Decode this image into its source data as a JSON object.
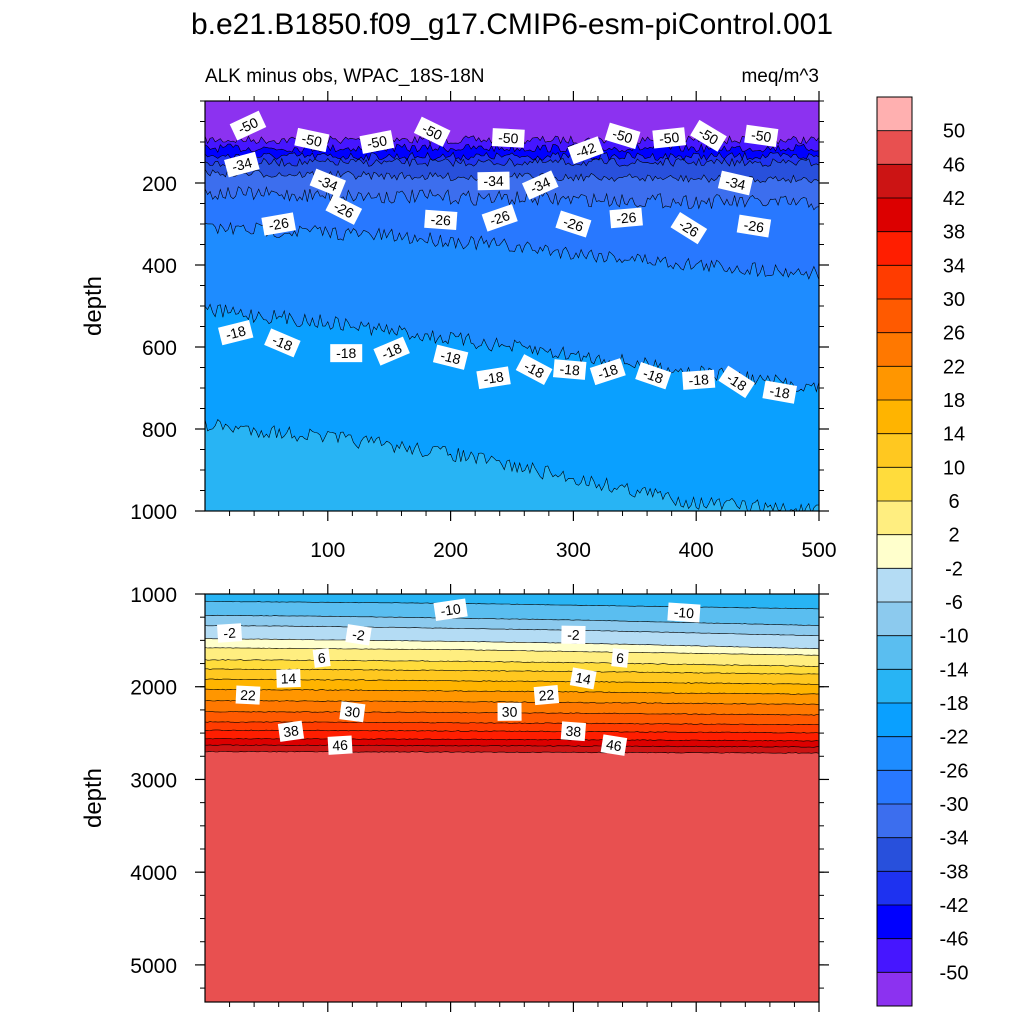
{
  "figure": {
    "title": "b.e21.B1850.f09_g17.CMIP6-esm-piControl.001",
    "left_string": "ALK minus obs, WPAC_18S-18N",
    "right_string": "meq/m^3"
  },
  "chart_data": [
    {
      "type": "heatmap",
      "panel": "upper",
      "title": "ALK minus obs, WPAC_18S-18N",
      "units": "meq/m^3",
      "xlabel": "",
      "ylabel": "depth",
      "xlim": [
        0,
        500
      ],
      "ylim": [
        0,
        1000
      ],
      "y_reversed": true,
      "x_ticks": [
        100,
        200,
        300,
        400,
        500
      ],
      "y_ticks": [
        200,
        400,
        600,
        800,
        1000
      ],
      "contour_interval": 4,
      "contour_boundaries_depth": {
        "x": [
          0,
          100,
          200,
          300,
          400,
          500
        ],
        "levels": [
          {
            "level": -50,
            "depth": [
              95,
              95,
              95,
              95,
              95,
              95
            ]
          },
          {
            "level": -46,
            "depth": [
              115,
              115,
              115,
              115,
              115,
              115
            ]
          },
          {
            "level": -42,
            "depth": [
              135,
              135,
              135,
              135,
              135,
              135
            ]
          },
          {
            "level": -38,
            "depth": [
              150,
              150,
              150,
              150,
              150,
              150
            ]
          },
          {
            "level": -34,
            "depth": [
              175,
              180,
              185,
              185,
              190,
              190
            ]
          },
          {
            "level": -30,
            "depth": [
              225,
              230,
              235,
              240,
              245,
              250
            ]
          },
          {
            "level": -26,
            "depth": [
              310,
              320,
              340,
              370,
              400,
              420
            ]
          },
          {
            "level": -22,
            "depth": [
              510,
              540,
              580,
              620,
              660,
              700
            ]
          },
          {
            "level": -18,
            "depth": [
              790,
              820,
              860,
              920,
              980,
              1000
            ]
          }
        ]
      },
      "contour_labels": [
        {
          "text": "-50",
          "x": 35,
          "depth": 60
        },
        {
          "text": "-50",
          "x": 87,
          "depth": 95
        },
        {
          "text": "-50",
          "x": 140,
          "depth": 100
        },
        {
          "text": "-50",
          "x": 185,
          "depth": 75
        },
        {
          "text": "-50",
          "x": 247,
          "depth": 90
        },
        {
          "text": "-42",
          "x": 310,
          "depth": 120
        },
        {
          "text": "-50",
          "x": 340,
          "depth": 85
        },
        {
          "text": "-50",
          "x": 378,
          "depth": 90
        },
        {
          "text": "-50",
          "x": 410,
          "depth": 85
        },
        {
          "text": "-50",
          "x": 453,
          "depth": 85
        },
        {
          "text": "-34",
          "x": 30,
          "depth": 155
        },
        {
          "text": "-34",
          "x": 100,
          "depth": 200
        },
        {
          "text": "-34",
          "x": 235,
          "depth": 195
        },
        {
          "text": "-34",
          "x": 273,
          "depth": 205
        },
        {
          "text": "-34",
          "x": 432,
          "depth": 200
        },
        {
          "text": "-26",
          "x": 60,
          "depth": 300
        },
        {
          "text": "-26",
          "x": 113,
          "depth": 265
        },
        {
          "text": "-26",
          "x": 192,
          "depth": 290
        },
        {
          "text": "-26",
          "x": 240,
          "depth": 285
        },
        {
          "text": "-26",
          "x": 300,
          "depth": 300
        },
        {
          "text": "-26",
          "x": 343,
          "depth": 285
        },
        {
          "text": "-26",
          "x": 394,
          "depth": 310
        },
        {
          "text": "-26",
          "x": 447,
          "depth": 305
        },
        {
          "text": "-18",
          "x": 25,
          "depth": 565
        },
        {
          "text": "-18",
          "x": 63,
          "depth": 590
        },
        {
          "text": "-18",
          "x": 115,
          "depth": 615
        },
        {
          "text": "-18",
          "x": 152,
          "depth": 610
        },
        {
          "text": "-18",
          "x": 200,
          "depth": 625
        },
        {
          "text": "-18",
          "x": 235,
          "depth": 675
        },
        {
          "text": "-18",
          "x": 268,
          "depth": 655
        },
        {
          "text": "-18",
          "x": 297,
          "depth": 655
        },
        {
          "text": "-18",
          "x": 328,
          "depth": 660
        },
        {
          "text": "-18",
          "x": 365,
          "depth": 670
        },
        {
          "text": "-18",
          "x": 402,
          "depth": 680
        },
        {
          "text": "-18",
          "x": 433,
          "depth": 685
        },
        {
          "text": "-18",
          "x": 468,
          "depth": 710
        }
      ]
    },
    {
      "type": "heatmap",
      "panel": "lower",
      "xlabel": "",
      "ylabel": "depth",
      "xlim": [
        0,
        500
      ],
      "ylim": [
        1000,
        5400
      ],
      "y_reversed": true,
      "y_ticks": [
        1000,
        2000,
        3000,
        4000,
        5000
      ],
      "contour_interval": 4,
      "contour_boundaries_depth": {
        "x": [
          0,
          100,
          200,
          300,
          400,
          500
        ],
        "levels": [
          {
            "level": -14,
            "depth": [
              1080,
              1090,
              1100,
              1120,
              1140,
              1160
            ]
          },
          {
            "level": -10,
            "depth": [
              1230,
              1240,
              1260,
              1280,
              1310,
              1340
            ]
          },
          {
            "level": -6,
            "depth": [
              1340,
              1350,
              1370,
              1390,
              1420,
              1450
            ]
          },
          {
            "level": -2,
            "depth": [
              1480,
              1495,
              1510,
              1530,
              1560,
              1590
            ]
          },
          {
            "level": 2,
            "depth": [
              1580,
              1590,
              1600,
              1620,
              1640,
              1660
            ]
          },
          {
            "level": 6,
            "depth": [
              1710,
              1715,
              1725,
              1740,
              1760,
              1780
            ]
          },
          {
            "level": 10,
            "depth": [
              1810,
              1815,
              1825,
              1835,
              1850,
              1865
            ]
          },
          {
            "level": 14,
            "depth": [
              1920,
              1925,
              1935,
              1945,
              1960,
              1975
            ]
          },
          {
            "level": 18,
            "depth": [
              2030,
              2035,
              2045,
              2055,
              2070,
              2080
            ]
          },
          {
            "level": 22,
            "depth": [
              2150,
              2155,
              2160,
              2170,
              2180,
              2190
            ]
          },
          {
            "level": 26,
            "depth": [
              2270,
              2272,
              2278,
              2285,
              2295,
              2305
            ]
          },
          {
            "level": 30,
            "depth": [
              2380,
              2382,
              2388,
              2395,
              2403,
              2410
            ]
          },
          {
            "level": 34,
            "depth": [
              2470,
              2472,
              2477,
              2483,
              2490,
              2497
            ]
          },
          {
            "level": 38,
            "depth": [
              2560,
              2562,
              2566,
              2572,
              2578,
              2585
            ]
          },
          {
            "level": 42,
            "depth": [
              2630,
              2632,
              2636,
              2640,
              2645,
              2650
            ]
          },
          {
            "level": 46,
            "depth": [
              2700,
              2702,
              2705,
              2708,
              2712,
              2716
            ]
          }
        ]
      },
      "contour_labels": [
        {
          "text": "-10",
          "x": 200,
          "depth": 1170
        },
        {
          "text": "-10",
          "x": 390,
          "depth": 1200
        },
        {
          "text": "-2",
          "x": 20,
          "depth": 1420
        },
        {
          "text": "-2",
          "x": 125,
          "depth": 1440
        },
        {
          "text": "-2",
          "x": 300,
          "depth": 1440
        },
        {
          "text": "6",
          "x": 95,
          "depth": 1690
        },
        {
          "text": "6",
          "x": 338,
          "depth": 1690
        },
        {
          "text": "14",
          "x": 68,
          "depth": 1910
        },
        {
          "text": "14",
          "x": 308,
          "depth": 1910
        },
        {
          "text": "22",
          "x": 35,
          "depth": 2090
        },
        {
          "text": "22",
          "x": 278,
          "depth": 2090
        },
        {
          "text": "30",
          "x": 120,
          "depth": 2270
        },
        {
          "text": "30",
          "x": 248,
          "depth": 2270
        },
        {
          "text": "38",
          "x": 70,
          "depth": 2480
        },
        {
          "text": "38",
          "x": 300,
          "depth": 2480
        },
        {
          "text": "46",
          "x": 110,
          "depth": 2630
        },
        {
          "text": "46",
          "x": 333,
          "depth": 2630
        }
      ]
    }
  ],
  "colorbar": {
    "labels": [
      "50",
      "46",
      "42",
      "38",
      "34",
      "30",
      "26",
      "22",
      "18",
      "14",
      "10",
      "6",
      "2",
      "-2",
      "-6",
      "-10",
      "-14",
      "-18",
      "-22",
      "-26",
      "-30",
      "-34",
      "-38",
      "-42",
      "-46",
      "-50"
    ],
    "colors": [
      "#ffb0b0",
      "#e85050",
      "#cc1414",
      "#dc0000",
      "#ff1e00",
      "#ff3c00",
      "#ff5a00",
      "#ff7800",
      "#ff9600",
      "#ffb400",
      "#ffc820",
      "#ffdc3c",
      "#ffee80",
      "#ffffcc",
      "#b4dcf4",
      "#8ccaee",
      "#5abef0",
      "#28b4f4",
      "#0aa0ff",
      "#1e8cff",
      "#2878ff",
      "#3c6eee",
      "#2850dc",
      "#1e32f0",
      "#0000ff",
      "#4616ff",
      "#8c32f0"
    ]
  }
}
